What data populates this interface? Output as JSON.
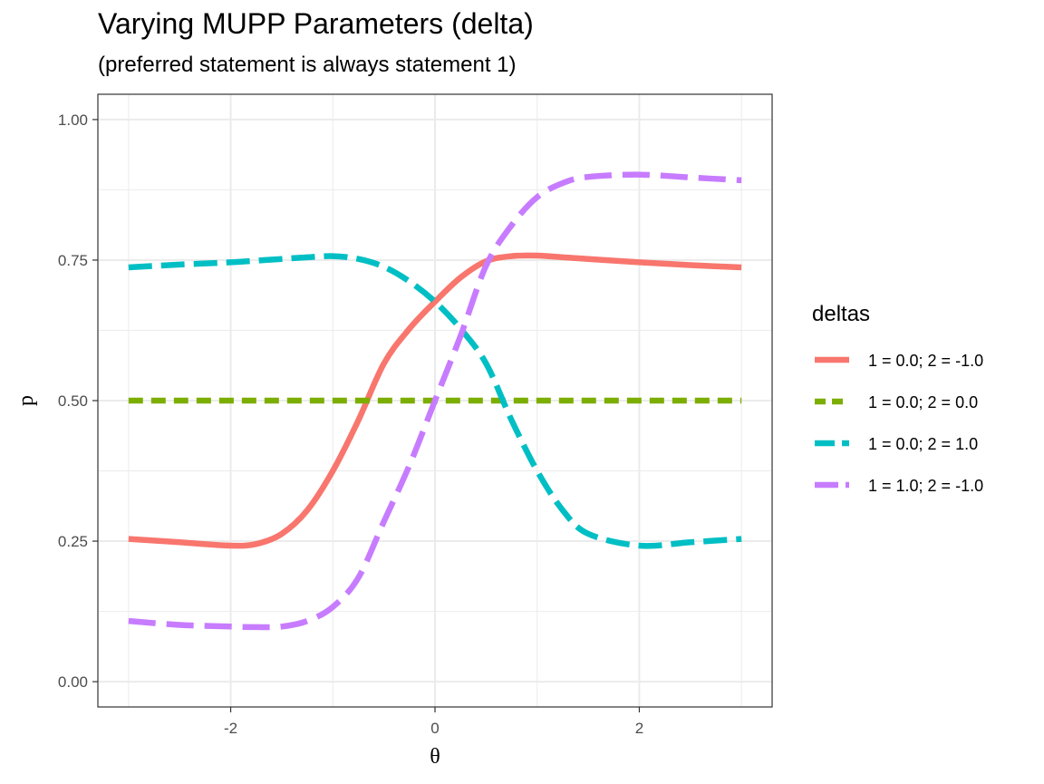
{
  "chart_data": {
    "type": "line",
    "title": "Varying MUPP Parameters (delta)",
    "subtitle": "(preferred statement is always statement 1)",
    "xlabel": "θ",
    "ylabel": "p",
    "xlim": [
      -3.3,
      3.3
    ],
    "ylim": [
      -0.045,
      1.045
    ],
    "x_ticks": [
      -2,
      0,
      2
    ],
    "x_tick_labels": [
      "-2",
      "0",
      "2"
    ],
    "y_ticks": [
      0,
      0.25,
      0.5,
      0.75,
      1
    ],
    "y_tick_labels": [
      "0.00",
      "0.25",
      "0.50",
      "0.75",
      "1.00"
    ],
    "grid": true,
    "legend_title": "deltas",
    "legend_position": "right",
    "x": [
      -3,
      -2.5,
      -2,
      -1.75,
      -1.5,
      -1.25,
      -1,
      -0.75,
      -0.5,
      -0.25,
      0,
      0.25,
      0.5,
      0.75,
      1,
      1.25,
      1.5,
      2,
      2.5,
      3
    ],
    "series": [
      {
        "name": "1 = 0.0; 2 = -1.0",
        "color": "#F8766D",
        "dash": "solid",
        "values": [
          0.254,
          0.248,
          0.242,
          0.245,
          0.263,
          0.305,
          0.375,
          0.465,
          0.566,
          0.628,
          0.676,
          0.719,
          0.748,
          0.757,
          0.758,
          0.755,
          0.752,
          0.746,
          0.741,
          0.737
        ]
      },
      {
        "name": "1 = 0.0; 2 = 0.0",
        "color": "#7CAE00",
        "dash": "short",
        "values": [
          0.5,
          0.5,
          0.5,
          0.5,
          0.5,
          0.5,
          0.5,
          0.5,
          0.5,
          0.5,
          0.5,
          0.5,
          0.5,
          0.5,
          0.5,
          0.5,
          0.5,
          0.5,
          0.5,
          0.5
        ]
      },
      {
        "name": "1 = 0.0; 2 = 1.0",
        "color": "#00BFC4",
        "dash": "long",
        "values": [
          0.737,
          0.742,
          0.746,
          0.749,
          0.752,
          0.755,
          0.757,
          0.752,
          0.738,
          0.712,
          0.676,
          0.628,
          0.566,
          0.465,
          0.375,
          0.305,
          0.263,
          0.242,
          0.248,
          0.254
        ]
      },
      {
        "name": "1 = 1.0; 2 = -1.0",
        "color": "#C77CFF",
        "dash": "twodash",
        "values": [
          0.108,
          0.101,
          0.098,
          0.097,
          0.098,
          0.108,
          0.133,
          0.185,
          0.285,
          0.385,
          0.5,
          0.615,
          0.74,
          0.812,
          0.862,
          0.887,
          0.898,
          0.902,
          0.897,
          0.892
        ]
      }
    ]
  }
}
